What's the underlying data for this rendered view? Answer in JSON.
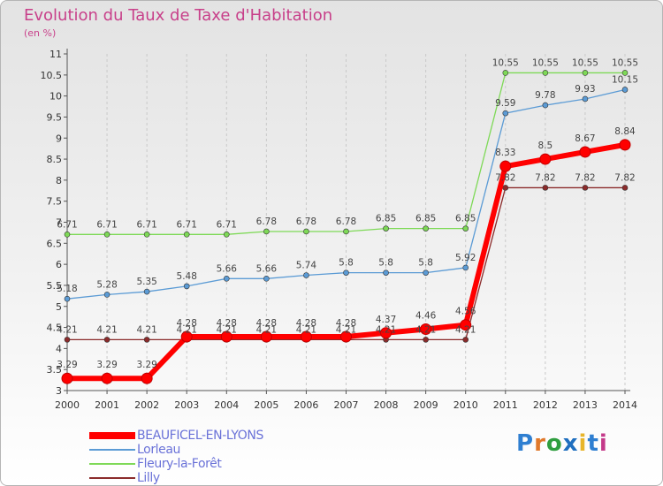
{
  "title": "Evolution du Taux de Taxe d'Habitation",
  "unit_label": "(en %)",
  "logo": {
    "text": "Proxiti"
  },
  "chart_data": {
    "type": "line",
    "title": "Evolution du Taux de Taxe d'Habitation",
    "ylabel": "(en %)",
    "xlabel": "",
    "x": [
      "2000",
      "2001",
      "2002",
      "2003",
      "2004",
      "2005",
      "2006",
      "2007",
      "2008",
      "2009",
      "2010",
      "2011",
      "2012",
      "2013",
      "2014"
    ],
    "ylim": [
      3,
      11
    ],
    "yticks": [
      "3",
      "3.5",
      "4",
      "4.5",
      "5",
      "5.5",
      "6",
      "6.5",
      "7",
      "7.5",
      "8",
      "8.5",
      "9",
      "9.5",
      "10",
      "10.5",
      "11"
    ],
    "grid": "vertical dashed",
    "legend_position": "bottom-left",
    "series": [
      {
        "name": "BEAUFICEL-EN-LYONS",
        "color": "#ff0000",
        "width": 6,
        "marker": 6,
        "values": [
          3.29,
          3.29,
          3.29,
          4.28,
          4.28,
          4.28,
          4.28,
          4.28,
          4.37,
          4.46,
          4.56,
          8.33,
          8.5,
          8.67,
          8.84
        ],
        "labels": [
          "3.29",
          "3.29",
          "3.29",
          "4.28",
          "4.28",
          "4.28",
          "4.28",
          "4.28",
          "4.37",
          "4.46",
          "4.56",
          "8.33",
          "8.5",
          "8.67",
          "8.84"
        ]
      },
      {
        "name": "Lorleau",
        "color": "#5b9bd5",
        "width": 1.3,
        "marker": 3,
        "values": [
          5.18,
          5.28,
          5.35,
          5.48,
          5.66,
          5.66,
          5.74,
          5.8,
          5.8,
          5.8,
          5.92,
          9.59,
          9.78,
          9.93,
          10.15
        ],
        "labels": [
          "5.18",
          "5.28",
          "5.35",
          "5.48",
          "5.66",
          "5.66",
          "5.74",
          "5.8",
          "5.8",
          "5.8",
          "5.92",
          "9.59",
          "9.78",
          "9.93",
          "10.15"
        ]
      },
      {
        "name": "Fleury-la-Forêt",
        "color": "#7ed957",
        "width": 1.3,
        "marker": 3,
        "values": [
          6.71,
          6.71,
          6.71,
          6.71,
          6.71,
          6.78,
          6.78,
          6.78,
          6.85,
          6.85,
          6.85,
          10.55,
          10.55,
          10.55,
          10.55
        ],
        "labels": [
          "6.71",
          "6.71",
          "6.71",
          "6.71",
          "6.71",
          "6.78",
          "6.78",
          "6.78",
          "6.85",
          "6.85",
          "6.85",
          "10.55",
          "10.55",
          "10.55",
          "10.55"
        ]
      },
      {
        "name": "Lilly",
        "color": "#8b2b2b",
        "width": 1.3,
        "marker": 3,
        "values": [
          4.21,
          4.21,
          4.21,
          4.21,
          4.21,
          4.21,
          4.21,
          4.21,
          4.21,
          4.21,
          4.21,
          7.82,
          7.82,
          7.82,
          7.82
        ],
        "labels": [
          "4.21",
          "4.21",
          "4.21",
          "4.21",
          "4.21",
          "4.21",
          "4.21",
          "4.21",
          "4.21",
          "4.21",
          "4.21",
          "7.82",
          "7.82",
          "7.82",
          "7.82"
        ]
      }
    ]
  }
}
